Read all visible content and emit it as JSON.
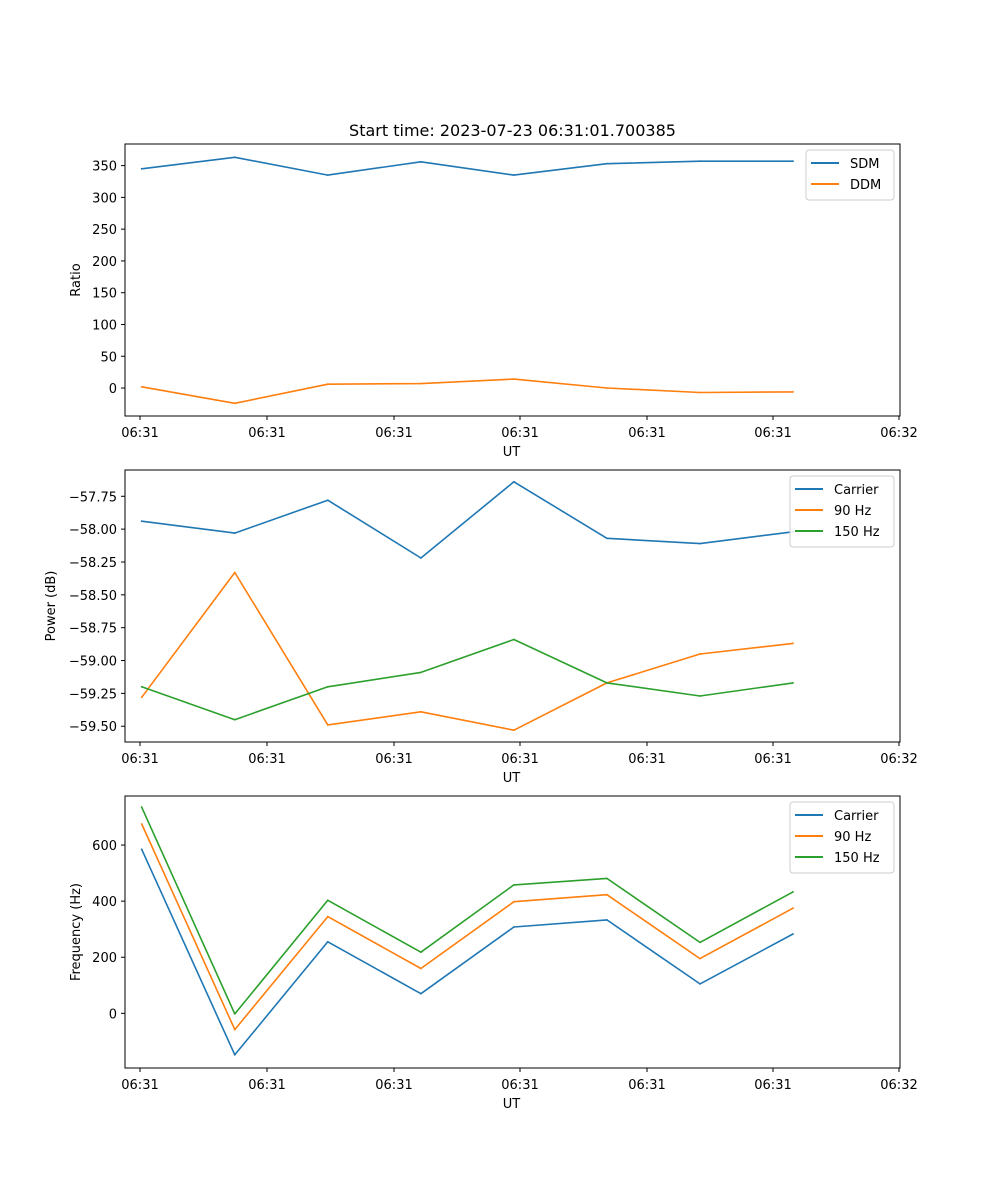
{
  "title": "Start time: 2023-07-23 06:31:01.700385",
  "colors": {
    "blue": "#1f77b4",
    "orange": "#ff7f0e",
    "green": "#2ca02c",
    "axes": "#000000",
    "background": "#ffffff"
  },
  "chart_data": [
    {
      "type": "line",
      "title": "Start time: 2023-07-23 06:31:01.700385",
      "xlabel": "UT",
      "ylabel": "Ratio",
      "x_tick_labels": [
        "06:31",
        "06:31",
        "06:31",
        "06:31",
        "06:31",
        "06:31",
        "06:32"
      ],
      "y_ticks": [
        0,
        50,
        100,
        150,
        200,
        250,
        300,
        350
      ],
      "ylim": [
        -44,
        384
      ],
      "x": [
        1,
        2,
        3,
        4,
        5,
        6,
        7,
        8
      ],
      "series": [
        {
          "name": "SDM",
          "color": "#1f77b4",
          "values": [
            345,
            363,
            335,
            356,
            335,
            353,
            357,
            357
          ]
        },
        {
          "name": "DDM",
          "color": "#ff7f0e",
          "values": [
            2,
            -24,
            6,
            7,
            14,
            0,
            -7,
            -6
          ]
        }
      ],
      "legend": "top-right"
    },
    {
      "type": "line",
      "title": "",
      "xlabel": "UT",
      "ylabel": "Power (dB)",
      "x_tick_labels": [
        "06:31",
        "06:31",
        "06:31",
        "06:31",
        "06:31",
        "06:31",
        "06:32"
      ],
      "y_ticks": [
        -59.5,
        -59.25,
        -59.0,
        -58.75,
        -58.5,
        -58.25,
        -58.0,
        -57.75
      ],
      "y_tick_labels": [
        "−59.50",
        "−59.25",
        "−59.00",
        "−58.75",
        "−58.50",
        "−58.25",
        "−58.00",
        "−57.75"
      ],
      "ylim": [
        -59.62,
        -57.55
      ],
      "x": [
        1,
        2,
        3,
        4,
        5,
        6,
        7,
        8
      ],
      "series": [
        {
          "name": "Carrier",
          "color": "#1f77b4",
          "values": [
            -57.94,
            -58.03,
            -57.78,
            -58.22,
            -57.64,
            -58.07,
            -58.11,
            -58.02
          ]
        },
        {
          "name": "90 Hz",
          "color": "#ff7f0e",
          "values": [
            -59.28,
            -58.33,
            -59.49,
            -59.39,
            -59.53,
            -59.17,
            -58.95,
            -58.87
          ]
        },
        {
          "name": "150 Hz",
          "color": "#2ca02c",
          "values": [
            -59.2,
            -59.45,
            -59.2,
            -59.09,
            -58.84,
            -59.17,
            -59.27,
            -59.17
          ]
        }
      ],
      "legend": "top-right"
    },
    {
      "type": "line",
      "title": "",
      "xlabel": "UT",
      "ylabel": "Frequency (Hz)",
      "x_tick_labels": [
        "06:31",
        "06:31",
        "06:31",
        "06:31",
        "06:31",
        "06:31",
        "06:32"
      ],
      "y_ticks": [
        0,
        200,
        400,
        600
      ],
      "ylim": [
        -195,
        775
      ],
      "x": [
        1,
        2,
        3,
        4,
        5,
        6,
        7,
        8
      ],
      "series": [
        {
          "name": "Carrier",
          "color": "#1f77b4",
          "values": [
            585,
            -148,
            255,
            70,
            308,
            333,
            105,
            283
          ]
        },
        {
          "name": "90 Hz",
          "color": "#ff7f0e",
          "values": [
            675,
            -58,
            345,
            160,
            398,
            423,
            195,
            375
          ]
        },
        {
          "name": "150 Hz",
          "color": "#2ca02c",
          "values": [
            735,
            -2,
            403,
            218,
            458,
            481,
            253,
            433
          ]
        }
      ],
      "legend": "top-right"
    }
  ]
}
